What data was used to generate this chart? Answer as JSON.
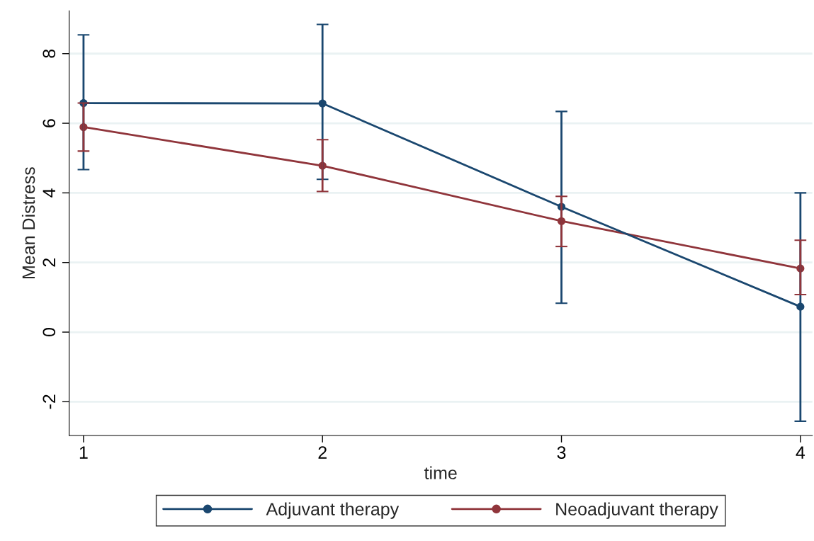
{
  "chart_data": {
    "type": "line",
    "xlabel": "time",
    "ylabel": "Mean Distress",
    "x": [
      1,
      2,
      3,
      4
    ],
    "series": [
      {
        "name": "Adjuvant therapy",
        "color": "#1a476f",
        "values": [
          6.58,
          6.57,
          3.6,
          0.73
        ],
        "errors": [
          [
            4.67,
            8.54
          ],
          [
            4.39,
            8.84
          ],
          [
            0.83,
            6.34
          ],
          [
            -2.56,
            4.0
          ]
        ]
      },
      {
        "name": "Neoadjuvant therapy",
        "color": "#90353b",
        "values": [
          5.89,
          4.78,
          3.19,
          1.83
        ],
        "errors": [
          [
            5.2,
            6.58
          ],
          [
            4.04,
            5.53
          ],
          [
            2.46,
            3.9
          ],
          [
            1.08,
            2.64
          ]
        ]
      }
    ],
    "xlim": [
      0.94,
      4.05
    ],
    "ylim": [
      -2.97,
      9.23
    ],
    "xticks": [
      1,
      2,
      3,
      4
    ],
    "yticks": [
      -2,
      0,
      2,
      4,
      6,
      8
    ],
    "grid": "y",
    "legend": "bottom",
    "marker": "circle",
    "line_style": "solid"
  }
}
